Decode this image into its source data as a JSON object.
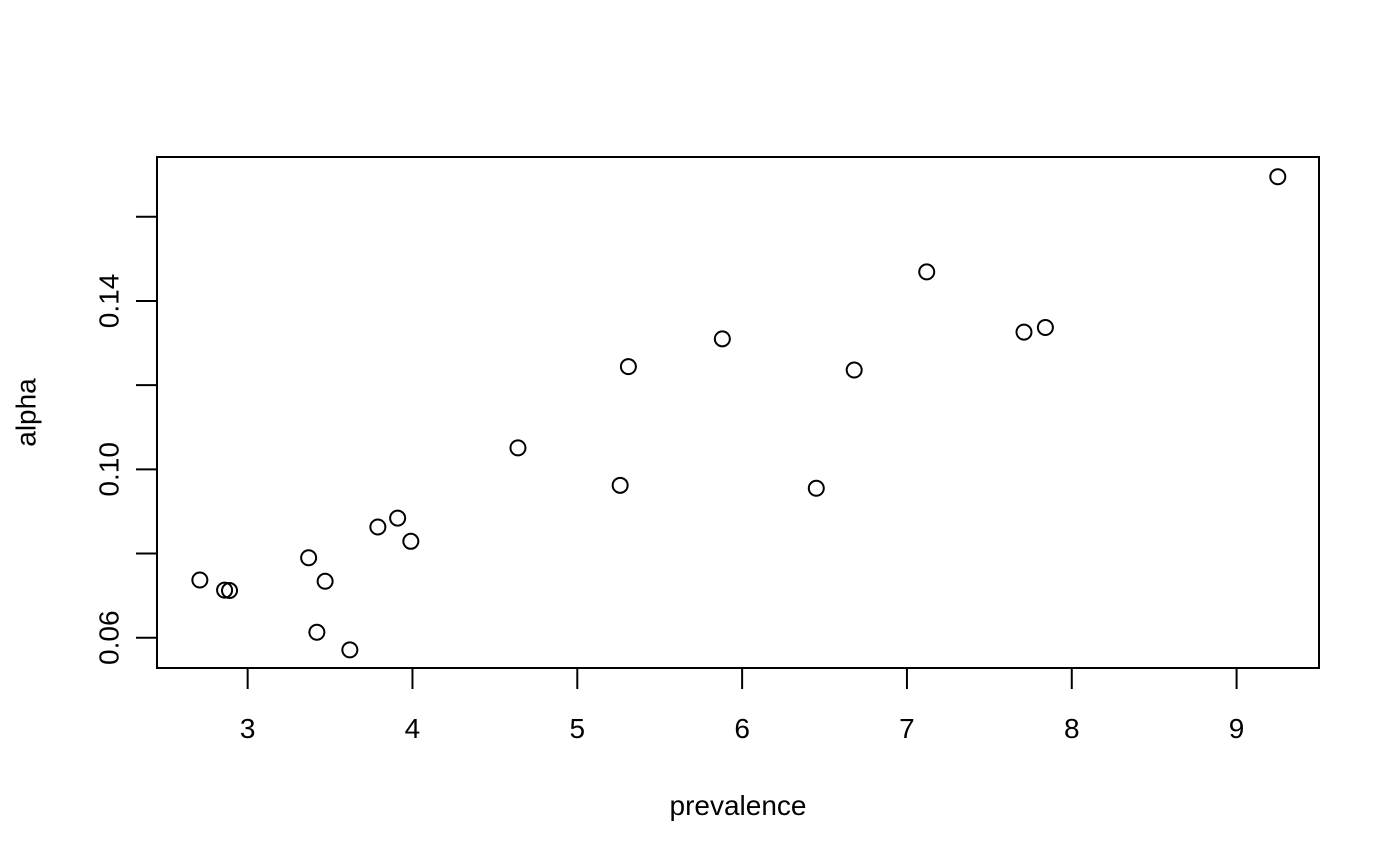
{
  "chart_data": {
    "type": "scatter",
    "title": "",
    "xlabel": "prevalence",
    "ylabel": "alpha",
    "xlim": [
      2.45,
      9.5
    ],
    "ylim": [
      0.0528,
      0.1742
    ],
    "x_ticks": [
      3,
      4,
      5,
      6,
      7,
      8,
      9
    ],
    "y_ticks": [
      0.06,
      0.08,
      0.1,
      0.12,
      0.14,
      0.16
    ],
    "y_tick_labels": [
      "0.06",
      "",
      "0.10",
      "",
      "0.14",
      ""
    ],
    "grid": false,
    "legend": null,
    "marker": "open-circle",
    "color": "#000000",
    "points": [
      {
        "x": 2.71,
        "y": 0.0737
      },
      {
        "x": 2.86,
        "y": 0.0713
      },
      {
        "x": 2.89,
        "y": 0.0712
      },
      {
        "x": 3.37,
        "y": 0.079
      },
      {
        "x": 3.42,
        "y": 0.0613
      },
      {
        "x": 3.47,
        "y": 0.0734
      },
      {
        "x": 3.62,
        "y": 0.0571
      },
      {
        "x": 3.79,
        "y": 0.0863
      },
      {
        "x": 3.91,
        "y": 0.0884
      },
      {
        "x": 3.99,
        "y": 0.0829
      },
      {
        "x": 4.64,
        "y": 0.1051
      },
      {
        "x": 5.26,
        "y": 0.0962
      },
      {
        "x": 5.31,
        "y": 0.1244
      },
      {
        "x": 5.88,
        "y": 0.131
      },
      {
        "x": 6.45,
        "y": 0.0955
      },
      {
        "x": 6.68,
        "y": 0.1236
      },
      {
        "x": 7.12,
        "y": 0.1469
      },
      {
        "x": 7.71,
        "y": 0.1326
      },
      {
        "x": 7.84,
        "y": 0.1337
      },
      {
        "x": 9.25,
        "y": 0.1695
      }
    ]
  }
}
